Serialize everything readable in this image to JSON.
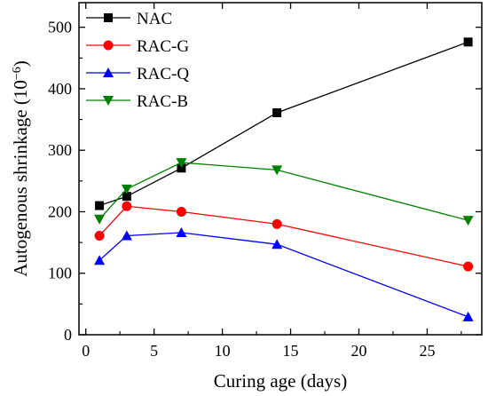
{
  "chart_data": {
    "type": "line",
    "title": "",
    "xlabel": "Curing age (days)",
    "ylabel": "Autogenous shrinkage (10",
    "ylabel_exponent": "−6",
    "ylabel_close": ")",
    "xlim": [
      -0.5,
      29
    ],
    "ylim": [
      0,
      540
    ],
    "xticks": [
      0,
      5,
      10,
      15,
      20,
      25
    ],
    "yticks": [
      0,
      100,
      200,
      300,
      400,
      500
    ],
    "xtick_labels": [
      "0",
      "5",
      "10",
      "15",
      "20",
      "25"
    ],
    "ytick_labels": [
      "0",
      "100",
      "200",
      "300",
      "400",
      "500"
    ],
    "x": [
      1,
      3,
      7,
      14,
      28
    ],
    "legend_position": "top-left",
    "series": [
      {
        "name": "NAC",
        "color": "#000000",
        "marker": "square",
        "values": [
          210,
          225,
          271,
          361,
          476
        ]
      },
      {
        "name": "RAC-G",
        "color": "#ff0000",
        "marker": "circle",
        "values": [
          161,
          209,
          200,
          180,
          111
        ]
      },
      {
        "name": "RAC-Q",
        "color": "#0000ff",
        "marker": "triangle-up",
        "values": [
          121,
          161,
          166,
          147,
          29
        ]
      },
      {
        "name": "RAC-B",
        "color": "#008000",
        "marker": "triangle-down",
        "values": [
          188,
          237,
          280,
          268,
          186
        ]
      }
    ]
  }
}
